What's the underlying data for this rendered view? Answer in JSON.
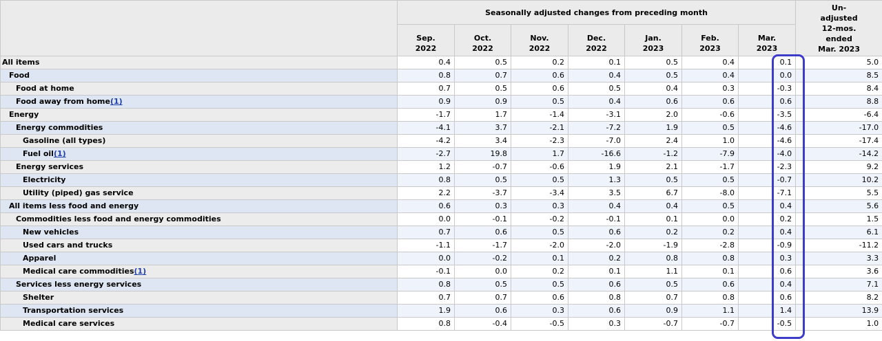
{
  "header": {
    "group_title": "Seasonally adjusted changes from preceding month",
    "months": [
      {
        "m": "Sep.",
        "y": "2022"
      },
      {
        "m": "Oct.",
        "y": "2022"
      },
      {
        "m": "Nov.",
        "y": "2022"
      },
      {
        "m": "Dec.",
        "y": "2022"
      },
      {
        "m": "Jan.",
        "y": "2023"
      },
      {
        "m": "Feb.",
        "y": "2023"
      },
      {
        "m": "Mar.",
        "y": "2023"
      }
    ],
    "unadjusted": [
      "Un-",
      "adjusted",
      "12-mos.",
      "ended",
      "Mar. 2023"
    ]
  },
  "rows": [
    {
      "label": "All items",
      "footnote": "",
      "values": [
        "0.4",
        "0.5",
        "0.2",
        "0.1",
        "0.5",
        "0.4",
        "0.1",
        "5.0"
      ]
    },
    {
      "label": "Food",
      "footnote": "",
      "values": [
        "0.8",
        "0.7",
        "0.6",
        "0.4",
        "0.5",
        "0.4",
        "0.0",
        "8.5"
      ]
    },
    {
      "label": "Food at home",
      "footnote": "",
      "values": [
        "0.7",
        "0.5",
        "0.6",
        "0.5",
        "0.4",
        "0.3",
        "-0.3",
        "8.4"
      ]
    },
    {
      "label": "Food away from home",
      "footnote": "(1)",
      "values": [
        "0.9",
        "0.9",
        "0.5",
        "0.4",
        "0.6",
        "0.6",
        "0.6",
        "8.8"
      ]
    },
    {
      "label": "Energy",
      "footnote": "",
      "values": [
        "-1.7",
        "1.7",
        "-1.4",
        "-3.1",
        "2.0",
        "-0.6",
        "-3.5",
        "-6.4"
      ]
    },
    {
      "label": "Energy commodities",
      "footnote": "",
      "values": [
        "-4.1",
        "3.7",
        "-2.1",
        "-7.2",
        "1.9",
        "0.5",
        "-4.6",
        "-17.0"
      ]
    },
    {
      "label": "Gasoline (all types)",
      "footnote": "",
      "values": [
        "-4.2",
        "3.4",
        "-2.3",
        "-7.0",
        "2.4",
        "1.0",
        "-4.6",
        "-17.4"
      ]
    },
    {
      "label": "Fuel oil",
      "footnote": "(1)",
      "values": [
        "-2.7",
        "19.8",
        "1.7",
        "-16.6",
        "-1.2",
        "-7.9",
        "-4.0",
        "-14.2"
      ]
    },
    {
      "label": "Energy services",
      "footnote": "",
      "values": [
        "1.2",
        "-0.7",
        "-0.6",
        "1.9",
        "2.1",
        "-1.7",
        "-2.3",
        "9.2"
      ]
    },
    {
      "label": "Electricity",
      "footnote": "",
      "values": [
        "0.8",
        "0.5",
        "0.5",
        "1.3",
        "0.5",
        "0.5",
        "-0.7",
        "10.2"
      ]
    },
    {
      "label": "Utility (piped) gas service",
      "footnote": "",
      "values": [
        "2.2",
        "-3.7",
        "-3.4",
        "3.5",
        "6.7",
        "-8.0",
        "-7.1",
        "5.5"
      ]
    },
    {
      "label": "All items less food and energy",
      "footnote": "",
      "values": [
        "0.6",
        "0.3",
        "0.3",
        "0.4",
        "0.4",
        "0.5",
        "0.4",
        "5.6"
      ]
    },
    {
      "label": "Commodities less food and energy commodities",
      "footnote": "",
      "values": [
        "0.0",
        "-0.1",
        "-0.2",
        "-0.1",
        "0.1",
        "0.0",
        "0.2",
        "1.5"
      ]
    },
    {
      "label": "New vehicles",
      "footnote": "",
      "values": [
        "0.7",
        "0.6",
        "0.5",
        "0.6",
        "0.2",
        "0.2",
        "0.4",
        "6.1"
      ]
    },
    {
      "label": "Used cars and trucks",
      "footnote": "",
      "values": [
        "-1.1",
        "-1.7",
        "-2.0",
        "-2.0",
        "-1.9",
        "-2.8",
        "-0.9",
        "-11.2"
      ]
    },
    {
      "label": "Apparel",
      "footnote": "",
      "values": [
        "0.0",
        "-0.2",
        "0.1",
        "0.2",
        "0.8",
        "0.8",
        "0.3",
        "3.3"
      ]
    },
    {
      "label": "Medical care commodities",
      "footnote": "(1)",
      "values": [
        "-0.1",
        "0.0",
        "0.2",
        "0.1",
        "1.1",
        "0.1",
        "0.6",
        "3.6"
      ]
    },
    {
      "label": "Services less energy services",
      "footnote": "",
      "values": [
        "0.8",
        "0.5",
        "0.5",
        "0.6",
        "0.5",
        "0.6",
        "0.4",
        "7.1"
      ]
    },
    {
      "label": "Shelter",
      "footnote": "",
      "values": [
        "0.7",
        "0.7",
        "0.6",
        "0.8",
        "0.7",
        "0.8",
        "0.6",
        "8.2"
      ]
    },
    {
      "label": "Transportation services",
      "footnote": "",
      "values": [
        "1.9",
        "0.6",
        "0.3",
        "0.6",
        "0.9",
        "1.1",
        "1.4",
        "13.9"
      ]
    },
    {
      "label": "Medical care services",
      "footnote": "",
      "values": [
        "0.8",
        "-0.4",
        "-0.5",
        "0.3",
        "-0.7",
        "-0.7",
        "-0.5",
        "1.0"
      ]
    }
  ],
  "annotation": {
    "color": "#3c3cc8"
  }
}
